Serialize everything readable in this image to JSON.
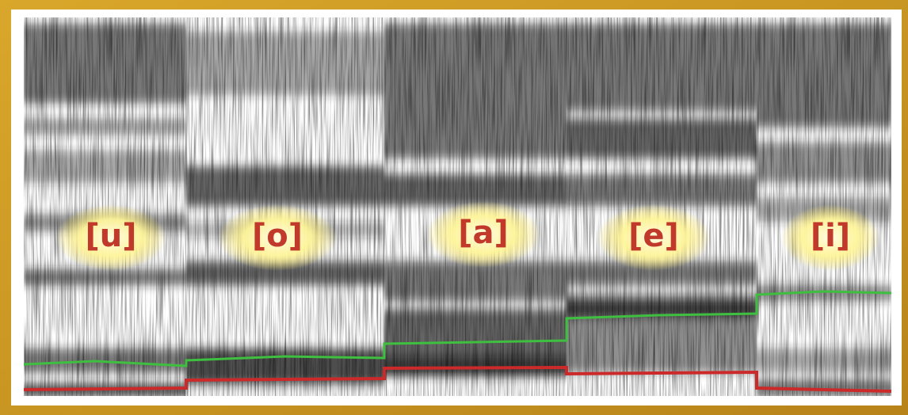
{
  "labels": [
    "[u]",
    "[o]",
    "[a]",
    "[e]",
    "[i]"
  ]
}
